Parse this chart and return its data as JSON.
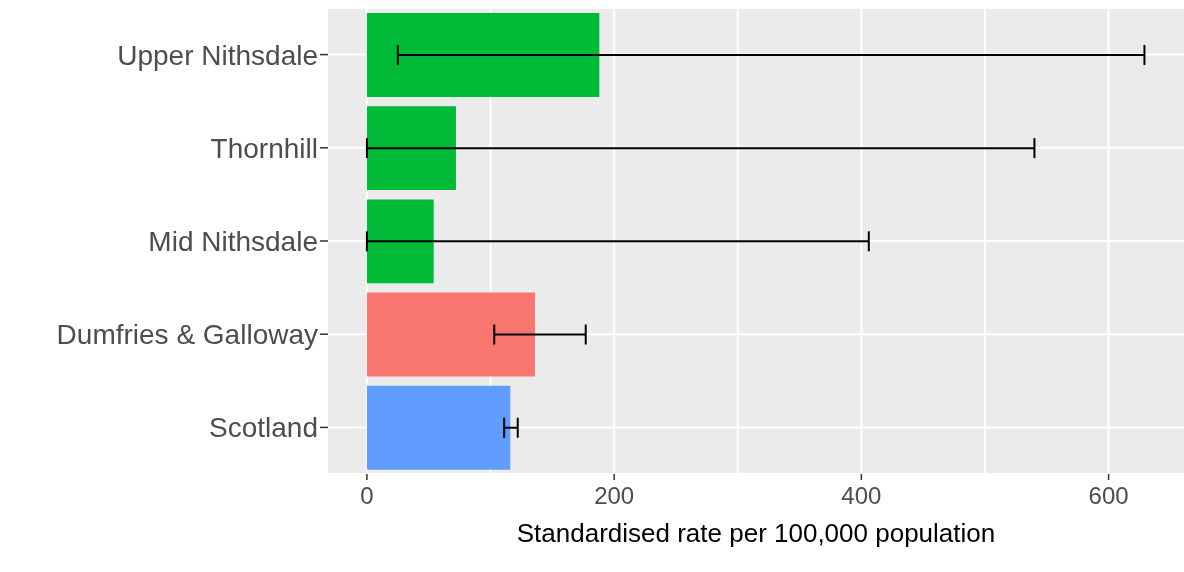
{
  "chart_data": {
    "type": "bar",
    "orientation": "horizontal",
    "xlabel": "Standardised rate per 100,000 population",
    "categories": [
      "Upper Nithsdale",
      "Thornhill",
      "Mid Nithsdale",
      "Dumfries & Galloway",
      "Scotland"
    ],
    "values": [
      188,
      72,
      54,
      136,
      116
    ],
    "colors": [
      "#00ba38",
      "#00ba38",
      "#00ba38",
      "#f8766d",
      "#619cff"
    ],
    "errors": [
      [
        25,
        629
      ],
      [
        0,
        540
      ],
      [
        0,
        406
      ],
      [
        103,
        177
      ],
      [
        111,
        122
      ]
    ],
    "xlim": [
      -31.5,
      661
    ],
    "xticks": [
      0,
      {
        "value": 100,
        "label": null
      },
      200,
      {
        "value": 300,
        "label": null
      },
      400,
      {
        "value": 500,
        "label": null
      },
      600
    ],
    "grid": true
  }
}
